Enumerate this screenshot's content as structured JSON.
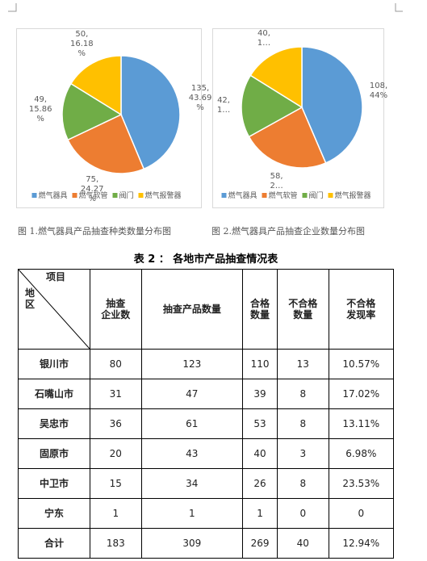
{
  "chart_data": [
    {
      "type": "pie",
      "categories": [
        "燃气器具",
        "燃气软管",
        "阀门",
        "燃气报警器"
      ],
      "colors": [
        "#5b9bd5",
        "#ed7d31",
        "#70ad47",
        "#ffc000"
      ],
      "values": [
        135,
        75,
        49,
        50
      ],
      "value_labels": [
        "135,\n43.69\n%",
        "75,\n24.27\n%",
        "49,\n15.86\n%",
        "50,\n16.18\n%"
      ],
      "caption": "图 1.燃气器具产品抽查种类数量分布图"
    },
    {
      "type": "pie",
      "categories": [
        "燃气器具",
        "燃气软管",
        "阀门",
        "燃气报警器"
      ],
      "colors": [
        "#5b9bd5",
        "#ed7d31",
        "#70ad47",
        "#ffc000"
      ],
      "values": [
        108,
        58,
        42,
        40
      ],
      "value_labels": [
        "108,\n44%",
        "58,\n2…",
        "42,\n1…",
        "40,\n1…"
      ],
      "caption": "图 2.燃气器具产品抽查企业数量分布图"
    }
  ],
  "table": {
    "title": "表 2 ： 各地市产品抽查情况表",
    "corner_top": "项目",
    "corner_bottom": "地\n区",
    "columns": [
      "抽查\n企业数",
      "抽查产品数量",
      "合格\n数量",
      "不合格\n数量",
      "不合格\n发现率"
    ],
    "rows": [
      [
        "银川市",
        "80",
        "123",
        "110",
        "13",
        "10.57%"
      ],
      [
        "石嘴山市",
        "31",
        "47",
        "39",
        "8",
        "17.02%"
      ],
      [
        "吴忠市",
        "36",
        "61",
        "53",
        "8",
        "13.11%"
      ],
      [
        "固原市",
        "20",
        "43",
        "40",
        "3",
        "6.98%"
      ],
      [
        "中卫市",
        "15",
        "34",
        "26",
        "8",
        "23.53%"
      ],
      [
        "宁东",
        "1",
        "1",
        "1",
        "0",
        "0"
      ],
      [
        "合计",
        "183",
        "309",
        "269",
        "40",
        "12.94%"
      ]
    ]
  }
}
